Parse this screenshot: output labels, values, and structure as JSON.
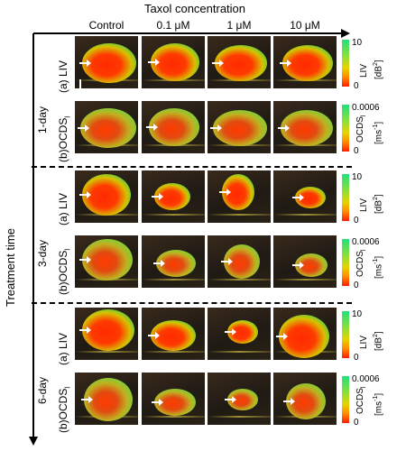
{
  "figure": {
    "x_title": "Taxol concentration",
    "y_title": "Treatment time",
    "columns": [
      "Control",
      "0.1 μM",
      "1 μM",
      "10 μM"
    ],
    "groups": [
      {
        "time": "1-day",
        "rows": [
          "(a) LIV",
          "(b)OCDS"
        ]
      },
      {
        "time": "3-day",
        "rows": [
          "(a) LIV",
          "(b)OCDS"
        ]
      },
      {
        "time": "6-day",
        "rows": [
          "(a) LIV",
          "(b)OCDS"
        ]
      }
    ],
    "subscript_l": "l",
    "liv_bar": {
      "max": "10",
      "min": "0",
      "label": "LIV",
      "unit_pre": "[dB",
      "unit_sup": "2",
      "unit_post": "]"
    },
    "ocds_bar": {
      "max": "0.0006",
      "min": "0",
      "label": "OCDS",
      "unit_pre": "[ms",
      "unit_sup": "-1",
      "unit_post": "]"
    },
    "colors": {
      "green": "#22e07a",
      "yellow": "#e6d400",
      "red": "#ff1e00"
    }
  }
}
